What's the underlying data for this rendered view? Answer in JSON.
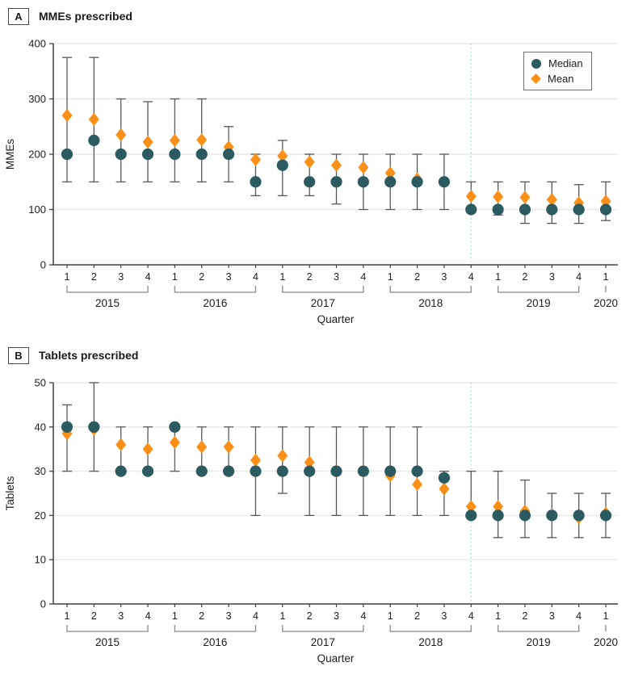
{
  "colors": {
    "median": "#2B5A60",
    "mean": "#FB9019",
    "error_bar": "#55595c",
    "gridline": "#e9e9e7",
    "axis": "#3f3f3f",
    "intervention_line": "#7fe9ee",
    "text": "#202020"
  },
  "legend": {
    "median_label": "Median",
    "mean_label": "Mean"
  },
  "chart_data": [
    {
      "type": "scatter",
      "panel_label": "A",
      "title": "MMEs prescribed",
      "ylabel": "MMEs",
      "xlabel": "Quarter",
      "ylim": [
        0,
        400
      ],
      "yticks": [
        0,
        100,
        200,
        300,
        400
      ],
      "grid": true,
      "legend_position": "top-right",
      "x_labels": [
        "1",
        "2",
        "3",
        "4",
        "1",
        "2",
        "3",
        "4",
        "1",
        "2",
        "3",
        "4",
        "1",
        "2",
        "3",
        "4",
        "1",
        "2",
        "3",
        "4",
        "1"
      ],
      "year_groups": [
        {
          "label": "2015",
          "start": 0,
          "end": 3
        },
        {
          "label": "2016",
          "start": 4,
          "end": 7
        },
        {
          "label": "2017",
          "start": 8,
          "end": 11
        },
        {
          "label": "2018",
          "start": 12,
          "end": 15
        },
        {
          "label": "2019",
          "start": 16,
          "end": 19
        },
        {
          "label": "2020",
          "start": 20,
          "end": 20
        }
      ],
      "intervention_index": 15,
      "series": [
        {
          "name": "Median",
          "marker": "circle",
          "values": [
            200,
            225,
            200,
            200,
            200,
            200,
            200,
            150,
            180,
            150,
            150,
            150,
            150,
            150,
            150,
            100,
            100,
            100,
            100,
            100,
            100
          ]
        },
        {
          "name": "Mean",
          "marker": "diamond",
          "values": [
            270,
            263,
            235,
            222,
            225,
            226,
            213,
            190,
            197,
            186,
            180,
            176,
            166,
            155,
            150,
            124,
            123,
            122,
            118,
            112,
            115
          ]
        }
      ],
      "error_low": [
        150,
        150,
        150,
        150,
        150,
        150,
        150,
        125,
        125,
        125,
        110,
        100,
        100,
        100,
        100,
        100,
        90,
        75,
        75,
        75,
        80
      ],
      "error_high": [
        375,
        375,
        300,
        295,
        300,
        300,
        250,
        200,
        225,
        200,
        200,
        200,
        200,
        200,
        200,
        150,
        150,
        150,
        150,
        145,
        150
      ]
    },
    {
      "type": "scatter",
      "panel_label": "B",
      "title": "Tablets prescribed",
      "ylabel": "Tablets",
      "xlabel": "Quarter",
      "ylim": [
        0,
        50
      ],
      "yticks": [
        0,
        10,
        20,
        30,
        40,
        50
      ],
      "grid": true,
      "legend_position": "none",
      "x_labels": [
        "1",
        "2",
        "3",
        "4",
        "1",
        "2",
        "3",
        "4",
        "1",
        "2",
        "3",
        "4",
        "1",
        "2",
        "3",
        "4",
        "1",
        "2",
        "3",
        "4",
        "1"
      ],
      "year_groups": [
        {
          "label": "2015",
          "start": 0,
          "end": 3
        },
        {
          "label": "2016",
          "start": 4,
          "end": 7
        },
        {
          "label": "2017",
          "start": 8,
          "end": 11
        },
        {
          "label": "2018",
          "start": 12,
          "end": 15
        },
        {
          "label": "2019",
          "start": 16,
          "end": 19
        },
        {
          "label": "2020",
          "start": 20,
          "end": 20
        }
      ],
      "intervention_index": 15,
      "series": [
        {
          "name": "Median",
          "marker": "circle",
          "values": [
            40,
            40,
            30,
            30,
            40,
            30,
            30,
            30,
            30,
            30,
            30,
            30,
            30,
            30,
            28.5,
            20,
            20,
            20,
            20,
            20,
            20
          ]
        },
        {
          "name": "Mean",
          "marker": "diamond",
          "values": [
            38.5,
            39.5,
            36,
            35,
            36.5,
            35.5,
            35.5,
            32.5,
            33.5,
            32,
            30,
            30,
            29,
            27,
            26,
            22,
            22,
            21,
            20,
            19.5,
            20.5
          ]
        }
      ],
      "error_low": [
        30,
        30,
        30,
        30,
        30,
        30,
        30,
        20,
        25,
        20,
        20,
        20,
        20,
        20,
        20,
        20,
        15,
        15,
        15,
        15,
        15
      ],
      "error_high": [
        45,
        50,
        40,
        40,
        40,
        40,
        40,
        40,
        40,
        40,
        40,
        40,
        40,
        40,
        30,
        30,
        30,
        28,
        25,
        25,
        25
      ]
    }
  ]
}
